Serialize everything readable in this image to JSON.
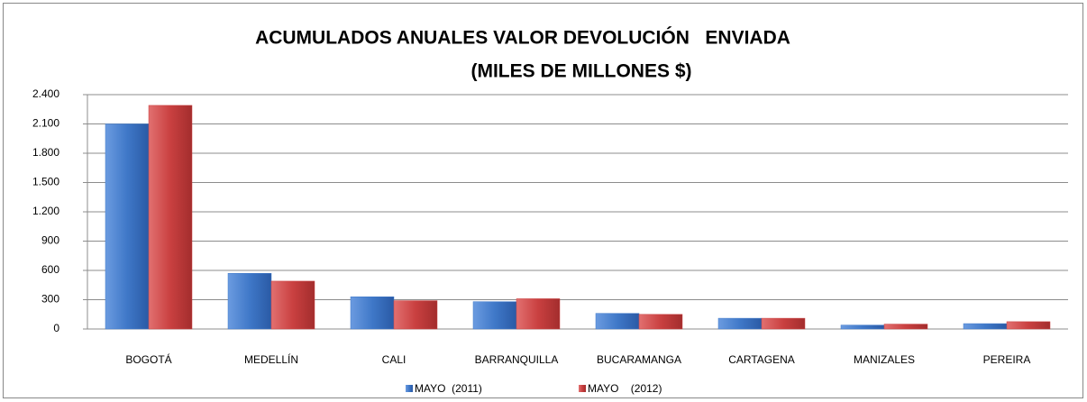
{
  "chart_data": {
    "type": "bar",
    "title": "ACUMULADOS ANUALES VALOR DEVOLUCIÓN   ENVIADA",
    "subtitle": "(MILES DE MILLONES $)",
    "categories": [
      "BOGOTÁ",
      "MEDELLÍN",
      "CALI",
      "BARRANQUILLA",
      "BUCARAMANGA",
      "CARTAGENA",
      "MANIZALES",
      "PEREIRA"
    ],
    "series": [
      {
        "name": "MAYO  (2011)",
        "color": "#3f78c8",
        "values": [
          2100,
          570,
          330,
          280,
          160,
          110,
          40,
          55
        ]
      },
      {
        "name": "MAYO    (2012)",
        "color": "#c94040",
        "values": [
          2290,
          490,
          290,
          310,
          150,
          110,
          50,
          75
        ]
      }
    ],
    "ylim": [
      0,
      2400
    ],
    "yticks": [
      0,
      300,
      600,
      900,
      {
        "value": 1200,
        "label": "1.200"
      },
      {
        "value": 1500,
        "label": "1.500"
      },
      {
        "value": 1800,
        "label": "1.800"
      },
      {
        "value": 2100,
        "label": "2.100"
      },
      {
        "value": 2400,
        "label": "2.400"
      }
    ],
    "grid": true,
    "legend": "bottom"
  }
}
